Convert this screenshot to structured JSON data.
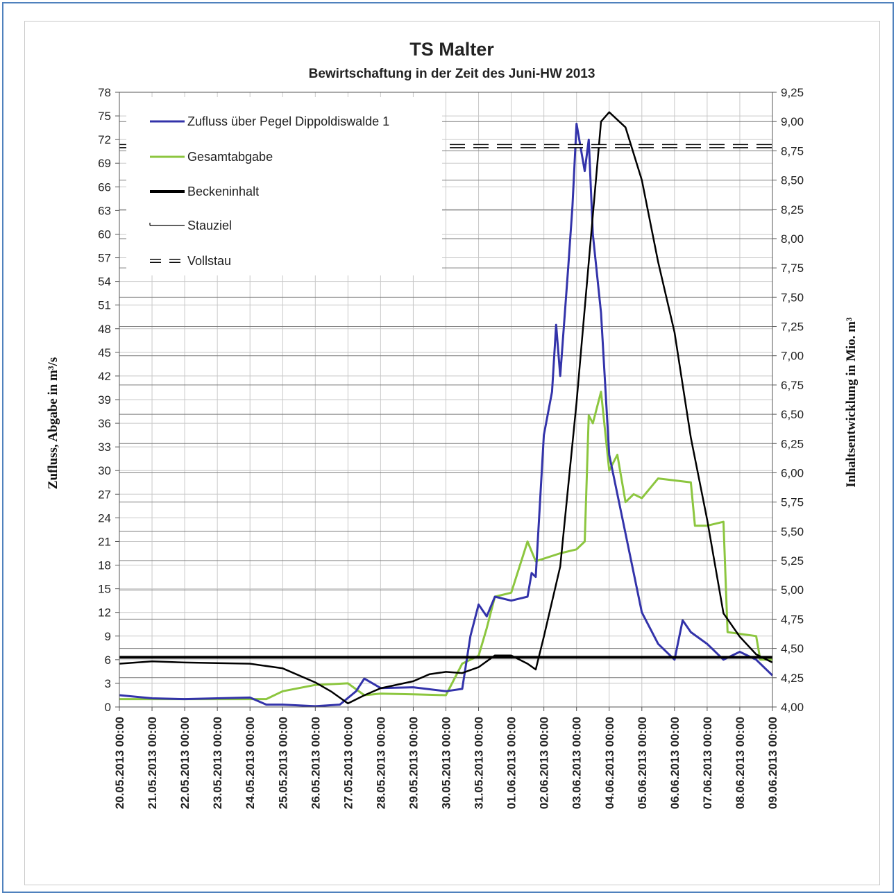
{
  "chart_data": {
    "type": "line",
    "title": "TS Malter",
    "subtitle": "Bewirtschaftung in der Zeit des Juni-HW 2013",
    "ylabel_left": "Zufluss, Abgabe in m³/s",
    "ylabel_right": "Inhaltsentwicklung in Mio. m³",
    "y_left_lim": [
      0,
      78
    ],
    "y_left_ticks": [
      "0",
      "3",
      "6",
      "9",
      "12",
      "15",
      "18",
      "21",
      "24",
      "27",
      "30",
      "33",
      "36",
      "39",
      "42",
      "45",
      "48",
      "51",
      "54",
      "57",
      "60",
      "63",
      "66",
      "69",
      "72",
      "75",
      "78"
    ],
    "y_right_lim": [
      4.0,
      9.25
    ],
    "y_right_ticks": [
      "4,00",
      "4,25",
      "4,50",
      "4,75",
      "5,00",
      "5,25",
      "5,50",
      "5,75",
      "6,00",
      "6,25",
      "6,50",
      "6,75",
      "7,00",
      "7,25",
      "7,50",
      "7,75",
      "8,00",
      "8,25",
      "8,50",
      "8,75",
      "9,00",
      "9,25"
    ],
    "x_ticks": [
      "20.05.2013 00:00",
      "21.05.2013 00:00",
      "22.05.2013 00:00",
      "23.05.2013 00:00",
      "24.05.2013 00:00",
      "25.05.2013 00:00",
      "26.05.2013 00:00",
      "27.05.2013 00:00",
      "28.05.2013 00:00",
      "29.05.2013 00:00",
      "30.05.2013 00:00",
      "31.05.2013 00:00",
      "01.06.2013 00:00",
      "02.06.2013 00:00",
      "03.06.2013 00:00",
      "04.06.2013 00:00",
      "05.06.2013 00:00",
      "06.06.2013 00:00",
      "07.06.2013 00:00",
      "08.06.2013 00:00",
      "09.06.2013 00:00"
    ],
    "legend_position": "top-left",
    "grid": true,
    "series": [
      {
        "name": "Zufluss über Pegel Dippoldiswalde 1",
        "axis": "left",
        "color": "#3333aa",
        "points": [
          [
            "20.05.2013 00:00",
            1.5
          ],
          [
            "21.05.2013 00:00",
            1.1
          ],
          [
            "22.05.2013 00:00",
            1.0
          ],
          [
            "23.05.2013 00:00",
            1.1
          ],
          [
            "24.05.2013 00:00",
            1.2
          ],
          [
            "24.05.2013 12:00",
            0.3
          ],
          [
            "25.05.2013 00:00",
            0.3
          ],
          [
            "26.05.2013 00:00",
            0.1
          ],
          [
            "26.05.2013 18:00",
            0.3
          ],
          [
            "27.05.2013 06:00",
            2.0
          ],
          [
            "27.05.2013 12:00",
            3.6
          ],
          [
            "28.05.2013 00:00",
            2.4
          ],
          [
            "29.05.2013 00:00",
            2.5
          ],
          [
            "30.05.2013 00:00",
            2.0
          ],
          [
            "30.05.2013 12:00",
            2.3
          ],
          [
            "30.05.2013 18:00",
            9.0
          ],
          [
            "31.05.2013 00:00",
            13.0
          ],
          [
            "31.05.2013 06:00",
            11.5
          ],
          [
            "31.05.2013 12:00",
            14.0
          ],
          [
            "01.06.2013 00:00",
            13.5
          ],
          [
            "01.06.2013 12:00",
            14.0
          ],
          [
            "01.06.2013 15:00",
            17.0
          ],
          [
            "01.06.2013 18:00",
            16.5
          ],
          [
            "02.06.2013 00:00",
            34.5
          ],
          [
            "02.06.2013 06:00",
            40.0
          ],
          [
            "02.06.2013 09:00",
            48.5
          ],
          [
            "02.06.2013 12:00",
            42.0
          ],
          [
            "02.06.2013 18:00",
            56.0
          ],
          [
            "02.06.2013 21:00",
            63.5
          ],
          [
            "03.06.2013 00:00",
            74.0
          ],
          [
            "03.06.2013 06:00",
            68.0
          ],
          [
            "03.06.2013 09:00",
            72.0
          ],
          [
            "03.06.2013 12:00",
            60.0
          ],
          [
            "03.06.2013 18:00",
            50.0
          ],
          [
            "04.06.2013 00:00",
            32.0
          ],
          [
            "04.06.2013 12:00",
            22.0
          ],
          [
            "05.06.2013 00:00",
            12.0
          ],
          [
            "05.06.2013 12:00",
            8.0
          ],
          [
            "06.06.2013 00:00",
            6.0
          ],
          [
            "06.06.2013 06:00",
            11.0
          ],
          [
            "06.06.2013 12:00",
            9.5
          ],
          [
            "07.06.2013 00:00",
            8.0
          ],
          [
            "07.06.2013 12:00",
            6.0
          ],
          [
            "08.06.2013 00:00",
            7.0
          ],
          [
            "08.06.2013 12:00",
            6.0
          ],
          [
            "09.06.2013 00:00",
            4.0
          ]
        ]
      },
      {
        "name": "Gesamtabgabe",
        "axis": "left",
        "color": "#8cc63f",
        "points": [
          [
            "20.05.2013 00:00",
            1.0
          ],
          [
            "24.05.2013 12:00",
            1.0
          ],
          [
            "25.05.2013 00:00",
            2.0
          ],
          [
            "26.05.2013 00:00",
            2.8
          ],
          [
            "27.05.2013 00:00",
            3.0
          ],
          [
            "27.05.2013 12:00",
            1.5
          ],
          [
            "28.05.2013 00:00",
            1.7
          ],
          [
            "29.05.2013 00:00",
            1.6
          ],
          [
            "30.05.2013 00:00",
            1.5
          ],
          [
            "30.05.2013 12:00",
            5.5
          ],
          [
            "31.05.2013 00:00",
            6.5
          ],
          [
            "31.05.2013 06:00",
            10.0
          ],
          [
            "31.05.2013 12:00",
            14.0
          ],
          [
            "01.06.2013 00:00",
            14.5
          ],
          [
            "01.06.2013 12:00",
            21.0
          ],
          [
            "01.06.2013 18:00",
            18.5
          ],
          [
            "02.06.2013 12:00",
            19.5
          ],
          [
            "03.06.2013 00:00",
            20.0
          ],
          [
            "03.06.2013 06:00",
            21.0
          ],
          [
            "03.06.2013 09:00",
            37.0
          ],
          [
            "03.06.2013 12:00",
            36.0
          ],
          [
            "03.06.2013 18:00",
            40.0
          ],
          [
            "04.06.2013 00:00",
            30.0
          ],
          [
            "04.06.2013 06:00",
            32.0
          ],
          [
            "04.06.2013 12:00",
            26.0
          ],
          [
            "04.06.2013 18:00",
            27.0
          ],
          [
            "05.06.2013 00:00",
            26.5
          ],
          [
            "05.06.2013 12:00",
            29.0
          ],
          [
            "06.06.2013 12:00",
            28.5
          ],
          [
            "06.06.2013 15:00",
            23.0
          ],
          [
            "07.06.2013 00:00",
            23.0
          ],
          [
            "07.06.2013 12:00",
            23.5
          ],
          [
            "07.06.2013 15:00",
            9.5
          ],
          [
            "08.06.2013 12:00",
            9.0
          ],
          [
            "08.06.2013 15:00",
            6.0
          ],
          [
            "09.06.2013 00:00",
            6.0
          ]
        ]
      },
      {
        "name": "Beckeninhalt",
        "axis": "right",
        "color": "#000000",
        "points": [
          [
            "20.05.2013 00:00",
            4.37
          ],
          [
            "21.05.2013 00:00",
            4.39
          ],
          [
            "22.05.2013 00:00",
            4.38
          ],
          [
            "24.05.2013 00:00",
            4.37
          ],
          [
            "25.05.2013 00:00",
            4.33
          ],
          [
            "26.05.2013 00:00",
            4.21
          ],
          [
            "26.05.2013 12:00",
            4.13
          ],
          [
            "27.05.2013 00:00",
            4.03
          ],
          [
            "27.05.2013 12:00",
            4.1
          ],
          [
            "28.05.2013 00:00",
            4.16
          ],
          [
            "29.05.2013 00:00",
            4.22
          ],
          [
            "29.05.2013 12:00",
            4.28
          ],
          [
            "30.05.2013 00:00",
            4.3
          ],
          [
            "30.05.2013 12:00",
            4.29
          ],
          [
            "31.05.2013 00:00",
            4.34
          ],
          [
            "31.05.2013 12:00",
            4.44
          ],
          [
            "01.06.2013 00:00",
            4.44
          ],
          [
            "01.06.2013 12:00",
            4.37
          ],
          [
            "01.06.2013 18:00",
            4.32
          ],
          [
            "02.06.2013 00:00",
            4.6
          ],
          [
            "02.06.2013 12:00",
            5.2
          ],
          [
            "03.06.2013 00:00",
            6.6
          ],
          [
            "03.06.2013 12:00",
            8.2
          ],
          [
            "03.06.2013 18:00",
            9.0
          ],
          [
            "04.06.2013 00:00",
            9.08
          ],
          [
            "04.06.2013 12:00",
            8.95
          ],
          [
            "05.06.2013 00:00",
            8.5
          ],
          [
            "05.06.2013 12:00",
            7.8
          ],
          [
            "06.06.2013 00:00",
            7.2
          ],
          [
            "06.06.2013 12:00",
            6.3
          ],
          [
            "07.06.2013 00:00",
            5.6
          ],
          [
            "07.06.2013 12:00",
            4.8
          ],
          [
            "08.06.2013 00:00",
            4.6
          ],
          [
            "08.06.2013 12:00",
            4.45
          ],
          [
            "09.06.2013 00:00",
            4.38
          ]
        ]
      },
      {
        "name": "Stauziel",
        "axis": "left",
        "color": "#000000",
        "points": [
          [
            "20.05.2013 00:00",
            6.3
          ],
          [
            "09.06.2013 00:00",
            6.3
          ]
        ]
      },
      {
        "name": "Vollstau",
        "axis": "right",
        "color": "#000000",
        "points": [
          [
            "20.05.2013 00:00",
            8.79
          ],
          [
            "09.06.2013 00:00",
            8.79
          ]
        ]
      }
    ]
  }
}
